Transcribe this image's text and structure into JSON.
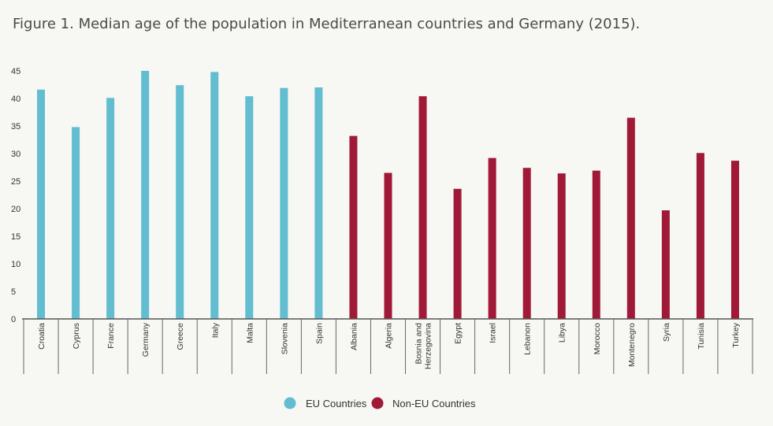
{
  "chart_data": {
    "type": "bar",
    "title": "Figure 1. Median age of the population in Mediterranean countries and Germany (2015).",
    "xlabel": "",
    "ylabel": "",
    "ylim": [
      0,
      45
    ],
    "yticks": [
      0,
      5,
      10,
      15,
      20,
      25,
      30,
      35,
      40,
      45
    ],
    "categories": [
      "Croatia",
      "Cyprus",
      "France",
      "Germany",
      "Greece",
      "Italy",
      "Malta",
      "Slovenia",
      "Spain",
      "Albania",
      "Algeria",
      "Bosnia and Herzegovina",
      "Egypt",
      "Israel",
      "Lebanon",
      "Libya",
      "Morocco",
      "Montenegro",
      "Syria",
      "Tunisia",
      "Turkey"
    ],
    "category_label_lines": [
      [
        "Croatia"
      ],
      [
        "Cyprus"
      ],
      [
        "France"
      ],
      [
        "Germany"
      ],
      [
        "Greece"
      ],
      [
        "Italy"
      ],
      [
        "Malta"
      ],
      [
        "Slovenia"
      ],
      [
        "Spain"
      ],
      [
        "Albania"
      ],
      [
        "Algeria"
      ],
      [
        "Bosnia and",
        "Herzegovina"
      ],
      [
        "Egypt"
      ],
      [
        "Israel"
      ],
      [
        "Lebanon"
      ],
      [
        "Libya"
      ],
      [
        "Morocco"
      ],
      [
        "Montenegro"
      ],
      [
        "Syria"
      ],
      [
        "Tunisia"
      ],
      [
        "Turkey"
      ]
    ],
    "series": [
      {
        "name": "EU Countries",
        "color": "#62bdd0",
        "values": [
          41.6,
          34.8,
          40.1,
          45.0,
          42.4,
          44.8,
          40.4,
          41.9,
          42.0,
          null,
          null,
          null,
          null,
          null,
          null,
          null,
          null,
          null,
          null,
          null,
          null
        ]
      },
      {
        "name": "Non-EU Countries",
        "color": "#a01a38",
        "values": [
          null,
          null,
          null,
          null,
          null,
          null,
          null,
          null,
          null,
          33.2,
          26.5,
          40.4,
          23.6,
          29.2,
          27.4,
          26.4,
          26.9,
          36.5,
          19.7,
          30.1,
          28.7
        ]
      }
    ],
    "legend": {
      "position": "bottom-center",
      "items": [
        {
          "label": "EU Countries",
          "color": "#62bdd0"
        },
        {
          "label": "Non-EU Countries",
          "color": "#a01a38"
        }
      ]
    },
    "grid": false
  }
}
